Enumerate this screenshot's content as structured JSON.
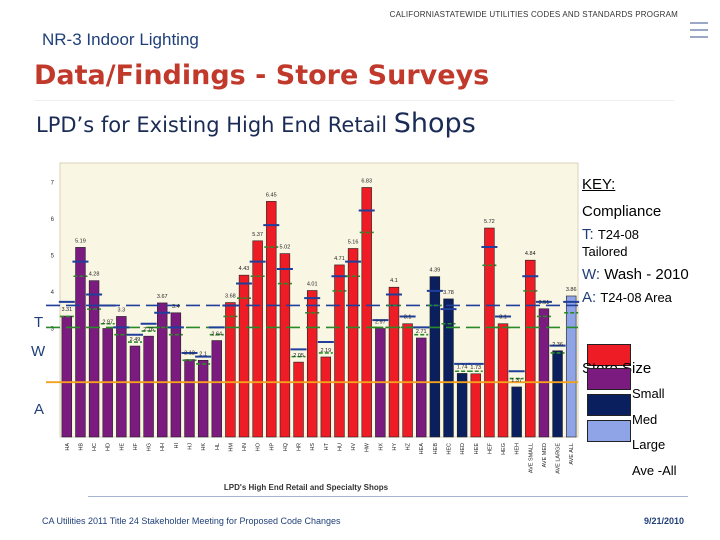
{
  "header": {
    "program": "CALIFORNIASTATEWIDE UTILITIES CODES AND STANDARDS PROGRAM",
    "section": "NR-3 Indoor Lighting",
    "title": "Data/Findings - Store Surveys",
    "subtitle_main": "LPD’s for Existing High End Retail",
    "subtitle_end": "Shops"
  },
  "footer": {
    "meeting": "CA Utilities 2011 Title 24 Stakeholder Meeting for Proposed Code Changes",
    "date": "9/21/2010"
  },
  "key": {
    "title": "KEY:",
    "compliance": "Compliance",
    "t_letter": "T:",
    "t_text": "T24-08",
    "t_text2": "Tailored",
    "w_letter": "W:",
    "w_text": "Wash - 2010",
    "a_letter": "A:",
    "a_text": "T24-08 Area",
    "store_size": "Store Size",
    "small": "Small",
    "med": "Med",
    "large": "Large",
    "ave_all": "Ave -All"
  },
  "colors": {
    "small": "#7b1a7f",
    "med": "#ee1c25",
    "large": "#0a1f5e",
    "ave_all": "#8ea4e6",
    "plot_bg": "#faf6e4",
    "area_line": "#f4a11b",
    "t_marker": "#1f3f9a",
    "w_marker": "#2a8a2a"
  },
  "chart_data": {
    "type": "bar",
    "xlabel": "LPD's High End Retail  and Specialty Shops",
    "ylim": [
      0,
      7.5
    ],
    "yticks": [
      7,
      6,
      5,
      4,
      3
    ],
    "ref_lines": [
      {
        "name": "T",
        "value": 3.6
      },
      {
        "name": "W",
        "value": 3.0
      },
      {
        "name": "A",
        "value": 1.5
      }
    ],
    "categories": [
      "HA",
      "HB",
      "HC",
      "HD",
      "HE",
      "HF",
      "HG",
      "HH",
      "HI",
      "HJ",
      "HK",
      "HL",
      "HM",
      "HN",
      "HO",
      "HP",
      "HQ",
      "HR",
      "HS",
      "HT",
      "HU",
      "HV",
      "HW",
      "HX",
      "HY",
      "HZ",
      "HEA",
      "HEB",
      "HEC",
      "HED",
      "HEE",
      "HEF",
      "HEG",
      "HEH",
      "AVE SMALL",
      "AVE MED",
      "AVE LARGE",
      "AVE ALL"
    ],
    "bars": [
      {
        "value": 3.31,
        "label": "3.31",
        "size": "small",
        "t": 3.7,
        "w": 3.3
      },
      {
        "value": 5.19,
        "label": "5.19",
        "size": "small",
        "t": 4.8,
        "w": 4.4
      },
      {
        "value": 4.28,
        "label": "4.28",
        "size": "small",
        "t": 3.9,
        "w": 3.5
      },
      {
        "value": 2.97,
        "label": "2.97",
        "size": "small",
        "t": 3.6,
        "w": 3.1
      },
      {
        "value": 3.3,
        "label": "3.3",
        "size": "small",
        "t": 3.0,
        "w": 2.8
      },
      {
        "value": 2.49,
        "label": "2.49",
        "size": "small",
        "t": 2.8,
        "w": 2.6
      },
      {
        "value": 2.76,
        "label": "2.76",
        "size": "small",
        "t": 3.1,
        "w": 2.9
      },
      {
        "value": 3.67,
        "label": "3.67",
        "size": "small",
        "t": 3.4,
        "w": 3.0
      },
      {
        "value": 3.4,
        "label": "3.4",
        "size": "small",
        "t": 3.0,
        "w": 2.8
      },
      {
        "value": 2.12,
        "label": "2.12",
        "size": "small",
        "t": 2.3,
        "w": 2.1
      },
      {
        "value": 2.1,
        "label": "2.1",
        "size": "small",
        "t": 2.2,
        "w": 2.0
      },
      {
        "value": 2.64,
        "label": "2.64",
        "size": "small",
        "t": 3.0,
        "w": 2.8
      },
      {
        "value": 3.68,
        "label": "3.68",
        "size": "med",
        "t": 3.6,
        "w": 3.3
      },
      {
        "value": 4.43,
        "label": "4.43",
        "size": "med",
        "t": 4.2,
        "w": 3.8
      },
      {
        "value": 5.37,
        "label": "5.37",
        "size": "med",
        "t": 4.8,
        "w": 4.4
      },
      {
        "value": 6.45,
        "label": "6.45",
        "size": "med",
        "t": 5.8,
        "w": 5.2
      },
      {
        "value": 5.02,
        "label": "5.02",
        "size": "med",
        "t": 4.6,
        "w": 4.2
      },
      {
        "value": 2.05,
        "label": "2.05",
        "size": "med",
        "t": 2.4,
        "w": 2.2
      },
      {
        "value": 4.01,
        "label": "4.01",
        "size": "med",
        "t": 3.8,
        "w": 3.4
      },
      {
        "value": 2.19,
        "label": "2.19",
        "size": "med",
        "t": 2.6,
        "w": 2.3
      },
      {
        "value": 4.71,
        "label": "4.71",
        "size": "med",
        "t": 4.4,
        "w": 4.0
      },
      {
        "value": 5.16,
        "label": "5.16",
        "size": "med",
        "t": 4.8,
        "w": 4.4
      },
      {
        "value": 6.83,
        "label": "6.83",
        "size": "med",
        "t": 6.2,
        "w": 5.6
      },
      {
        "value": 2.97,
        "label": "2.97",
        "size": "small",
        "t": 3.2,
        "w": 3.0
      },
      {
        "value": 4.1,
        "label": "4.1",
        "size": "med",
        "t": 3.9,
        "w": 3.6
      },
      {
        "value": 3.1,
        "label": "3.1",
        "size": "med",
        "t": 3.3,
        "w": 3.0
      },
      {
        "value": 2.71,
        "label": "2.71",
        "size": "small",
        "t": 3.0,
        "w": 2.8
      },
      {
        "value": 4.39,
        "label": "4.39",
        "size": "large",
        "t": 4.0,
        "w": 3.6
      },
      {
        "value": 3.78,
        "label": "3.78",
        "size": "large",
        "t": 3.5,
        "w": 3.1
      },
      {
        "value": 1.74,
        "label": "1.74",
        "size": "large",
        "t": 2.0,
        "w": 1.8
      },
      {
        "value": 1.73,
        "label": "1.73",
        "size": "med",
        "t": 2.0,
        "w": 1.8
      },
      {
        "value": 5.72,
        "label": "5.72",
        "size": "med",
        "t": 5.2,
        "w": 4.7
      },
      {
        "value": 3.1,
        "label": "3.1",
        "size": "med",
        "t": 3.3,
        "w": 3.0
      },
      {
        "value": 1.37,
        "label": "1.37",
        "size": "large",
        "t": 1.8,
        "w": 1.6
      },
      {
        "value": 4.84,
        "label": "4.84",
        "size": "med",
        "t": 4.4,
        "w": 4.0
      },
      {
        "value": 3.51,
        "label": "3.51",
        "size": "small",
        "t": 3.7,
        "w": 3.3
      },
      {
        "value": 2.36,
        "label": "2.36",
        "size": "large",
        "t": 2.5,
        "w": 2.3
      },
      {
        "value": 3.86,
        "label": "3.86",
        "size": "ave_all",
        "t": 3.7,
        "w": 3.4
      }
    ]
  }
}
